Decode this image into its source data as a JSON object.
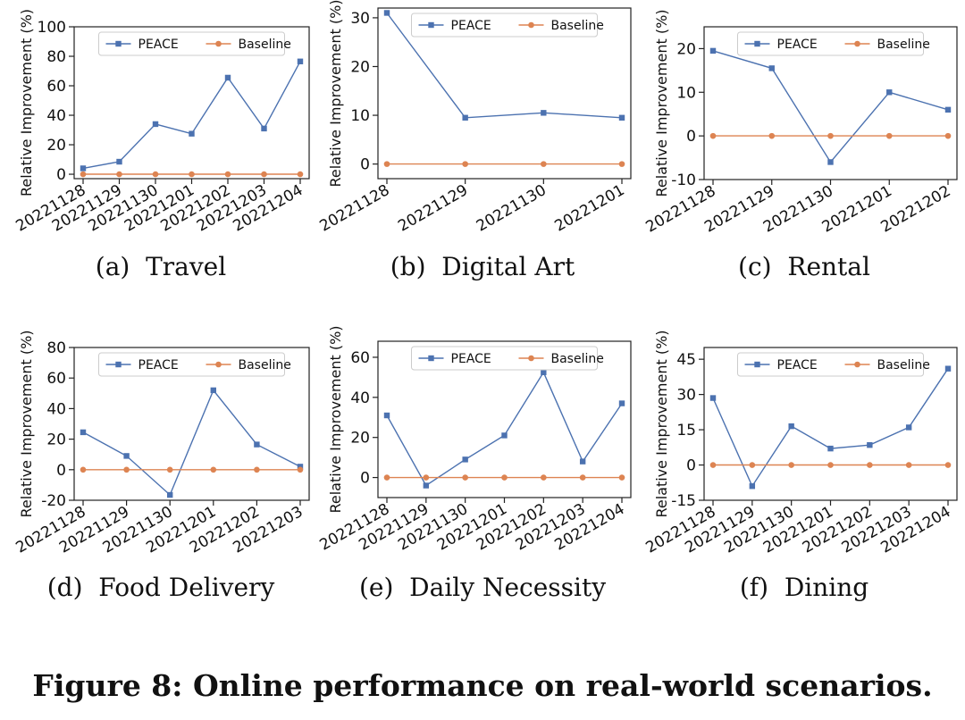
{
  "figure_caption": "Figure 8: Online performance on real-world scenarios.",
  "legend_labels": [
    "PEACE",
    "Baseline"
  ],
  "colors": {
    "PEACE": "#4c72b0",
    "Baseline": "#dd8452"
  },
  "chart_data": [
    {
      "type": "line",
      "caption": "(a)  Travel",
      "ylabel": "Relative Improvement (%)",
      "categories": [
        "20221128",
        "20221129",
        "20221130",
        "20221201",
        "20221202",
        "20221203",
        "20221204"
      ],
      "ylim": [
        -3,
        100
      ],
      "yticks": [
        0,
        20,
        40,
        60,
        80,
        100
      ],
      "legend_position": "top-center",
      "series": [
        {
          "name": "PEACE",
          "values": [
            4,
            8.5,
            34,
            27.5,
            65.5,
            31,
            76.5
          ]
        },
        {
          "name": "Baseline",
          "values": [
            0,
            0,
            0,
            0,
            0,
            0,
            0
          ]
        }
      ]
    },
    {
      "type": "line",
      "caption": "(b)  Digital Art",
      "ylabel": "Relative Improvement (%)",
      "categories": [
        "20221128",
        "20221129",
        "20221130",
        "20221201"
      ],
      "ylim": [
        -3,
        32
      ],
      "yticks": [
        0,
        10,
        20,
        30
      ],
      "legend_position": "top-center",
      "series": [
        {
          "name": "PEACE",
          "values": [
            31,
            9.5,
            10.5,
            9.5
          ]
        },
        {
          "name": "Baseline",
          "values": [
            0,
            0,
            0,
            0
          ]
        }
      ]
    },
    {
      "type": "line",
      "caption": "(c)  Rental",
      "ylabel": "Relative Improvement (%)",
      "categories": [
        "20221128",
        "20221129",
        "20221130",
        "20221201",
        "20221202"
      ],
      "ylim": [
        -10,
        25
      ],
      "yticks": [
        -10,
        0,
        10,
        20
      ],
      "legend_position": "top-center",
      "series": [
        {
          "name": "PEACE",
          "values": [
            19.5,
            15.5,
            -6,
            10,
            6
          ]
        },
        {
          "name": "Baseline",
          "values": [
            0,
            0,
            0,
            0,
            0
          ]
        }
      ]
    },
    {
      "type": "line",
      "caption": "(d)  Food Delivery",
      "ylabel": "Relative Improvement (%)",
      "categories": [
        "20221128",
        "20221129",
        "20221130",
        "20221201",
        "20221202",
        "20221203"
      ],
      "ylim": [
        -20,
        80
      ],
      "yticks": [
        -20,
        0,
        20,
        40,
        60,
        80
      ],
      "legend_position": "top-center",
      "series": [
        {
          "name": "PEACE",
          "values": [
            24.5,
            9,
            -16.5,
            52,
            16.5,
            2
          ]
        },
        {
          "name": "Baseline",
          "values": [
            0,
            0,
            0,
            0,
            0,
            0
          ]
        }
      ]
    },
    {
      "type": "line",
      "caption": "(e)  Daily Necessity",
      "ylabel": "Relative Improvement (%)",
      "categories": [
        "20221128",
        "20221129",
        "20221130",
        "20221201",
        "20221202",
        "20221203",
        "20221204"
      ],
      "ylim": [
        -10,
        68
      ],
      "yticks": [
        0,
        20,
        40,
        60
      ],
      "legend_position": "top-center",
      "series": [
        {
          "name": "PEACE",
          "values": [
            31,
            -4,
            9,
            21,
            52.5,
            8,
            37
          ]
        },
        {
          "name": "Baseline",
          "values": [
            0,
            0,
            0,
            0,
            0,
            0,
            0
          ]
        }
      ]
    },
    {
      "type": "line",
      "caption": "(f)  Dining",
      "ylabel": "Relative Improvement (%)",
      "categories": [
        "20221128",
        "20221129",
        "20221130",
        "20221201",
        "20221202",
        "20221203",
        "20221204"
      ],
      "ylim": [
        -15,
        50
      ],
      "yticks": [
        -15,
        0,
        15,
        30,
        45
      ],
      "legend_position": "top-center",
      "series": [
        {
          "name": "PEACE",
          "values": [
            28.5,
            -9,
            16.5,
            7,
            8.5,
            16,
            41
          ]
        },
        {
          "name": "Baseline",
          "values": [
            0,
            0,
            0,
            0,
            0,
            0,
            0
          ]
        }
      ]
    }
  ]
}
